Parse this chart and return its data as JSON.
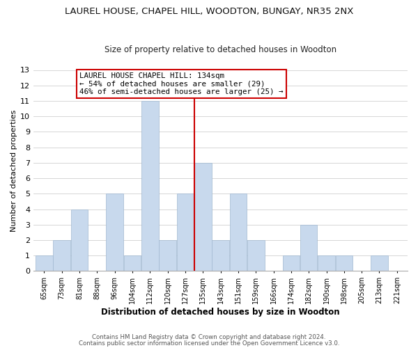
{
  "title": "LAUREL HOUSE, CHAPEL HILL, WOODTON, BUNGAY, NR35 2NX",
  "subtitle": "Size of property relative to detached houses in Woodton",
  "xlabel": "Distribution of detached houses by size in Woodton",
  "ylabel": "Number of detached properties",
  "bin_labels": [
    "65sqm",
    "73sqm",
    "81sqm",
    "88sqm",
    "96sqm",
    "104sqm",
    "112sqm",
    "120sqm",
    "127sqm",
    "135sqm",
    "143sqm",
    "151sqm",
    "159sqm",
    "166sqm",
    "174sqm",
    "182sqm",
    "190sqm",
    "198sqm",
    "205sqm",
    "213sqm",
    "221sqm"
  ],
  "bar_heights": [
    1,
    2,
    4,
    0,
    5,
    1,
    11,
    2,
    5,
    7,
    2,
    5,
    2,
    0,
    1,
    3,
    1,
    1,
    0,
    1,
    0
  ],
  "bar_color": "#c8d9ed",
  "bar_edge_color": "#a0b8d0",
  "highlight_color": "#cc0000",
  "annotation_line1": "LAUREL HOUSE CHAPEL HILL: 134sqm",
  "annotation_line2": "← 54% of detached houses are smaller (29)",
  "annotation_line3": "46% of semi-detached houses are larger (25) →",
  "annotation_box_color": "#ffffff",
  "annotation_box_edgecolor": "#cc0000",
  "footer_line1": "Contains HM Land Registry data © Crown copyright and database right 2024.",
  "footer_line2": "Contains public sector information licensed under the Open Government Licence v3.0.",
  "ylim": [
    0,
    13
  ],
  "yticks": [
    0,
    1,
    2,
    3,
    4,
    5,
    6,
    7,
    8,
    9,
    10,
    11,
    12,
    13
  ],
  "background_color": "#ffffff",
  "grid_color": "#d0d0d0"
}
